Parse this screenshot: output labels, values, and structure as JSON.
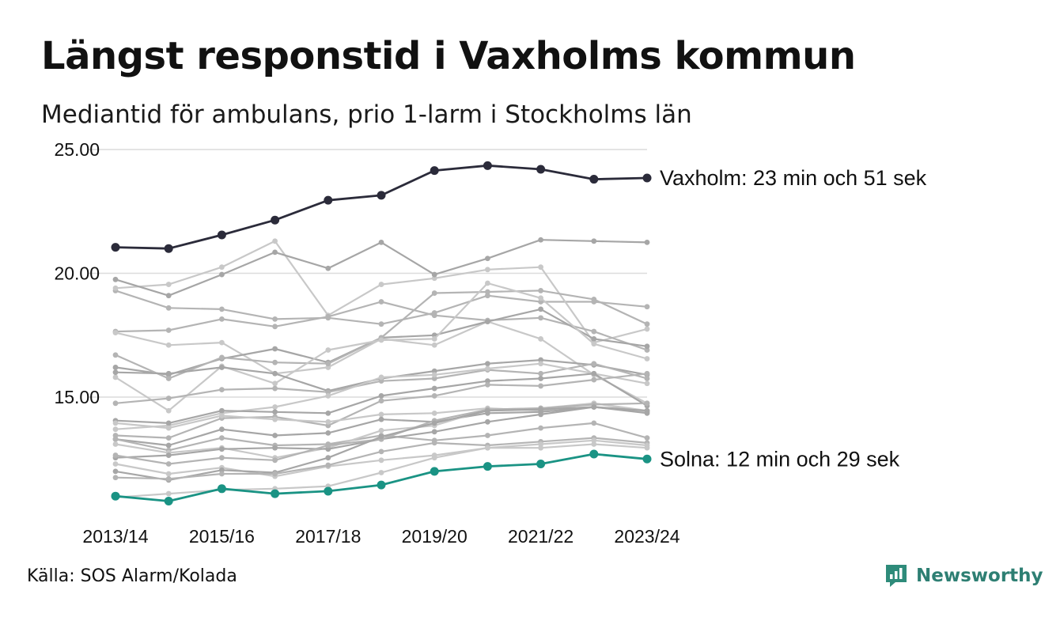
{
  "title": "Längst responstid i Vaxholms kommun",
  "subtitle": "Mediantid för ambulans, prio 1-larm i Stockholms län",
  "source": "Källa: SOS Alarm/Kolada",
  "brand": {
    "name": "Newsworthy",
    "icon": "newsworthy-logo-icon",
    "color": "#2e8b7a"
  },
  "colors": {
    "highlight_top": "#2b2b3a",
    "highlight_bottom": "#1a9384",
    "others": [
      "#b4b4b4",
      "#c8c8c8",
      "#a6a6a6"
    ],
    "grid": "#dcdcdc"
  },
  "chart_data": {
    "type": "line",
    "title": "Längst responstid i Vaxholms kommun",
    "subtitle": "Mediantid för ambulans, prio 1-larm i Stockholms län",
    "x": [
      "2013/14",
      "2014/15",
      "2015/16",
      "2016/17",
      "2017/18",
      "2018/19",
      "2019/20",
      "2020/21",
      "2021/22",
      "2022/23",
      "2023/24"
    ],
    "x_tick_labels": [
      "2013/14",
      "2015/16",
      "2017/18",
      "2019/20",
      "2021/22",
      "2023/24"
    ],
    "y_ticks": [
      "15.00",
      "20.00",
      "25.00"
    ],
    "ylim": [
      10.5,
      25.0
    ],
    "grid": true,
    "highlights": [
      {
        "name": "Vaxholm",
        "label": "Vaxholm: 23 min och 51 sek",
        "color": "#2b2b3a",
        "values": [
          21.05,
          21.0,
          21.55,
          22.15,
          22.95,
          23.15,
          24.15,
          24.35,
          24.2,
          23.8,
          23.85
        ]
      },
      {
        "name": "Solna",
        "label": "Solna: 12 min och 29 sek",
        "color": "#1a9384",
        "values": [
          11.0,
          10.8,
          11.3,
          11.1,
          11.2,
          11.45,
          12.0,
          12.2,
          12.3,
          12.7,
          12.5
        ]
      }
    ],
    "series": [
      {
        "values": [
          19.3,
          18.6,
          18.55,
          18.15,
          18.2,
          17.95,
          18.4,
          19.1,
          18.85,
          18.85,
          18.65
        ]
      },
      {
        "values": [
          19.4,
          19.55,
          20.25,
          21.3,
          18.3,
          19.55,
          19.8,
          20.15,
          20.25,
          17.2,
          17.75
        ]
      },
      {
        "values": [
          19.75,
          19.1,
          19.95,
          20.85,
          20.2,
          21.25,
          19.95,
          20.6,
          21.35,
          21.3,
          21.25
        ]
      },
      {
        "values": [
          17.65,
          17.7,
          18.15,
          17.85,
          18.25,
          18.85,
          18.3,
          18.1,
          18.2,
          17.65,
          16.9
        ]
      },
      {
        "values": [
          17.6,
          17.1,
          17.2,
          15.95,
          16.2,
          17.35,
          17.1,
          18.05,
          17.35,
          15.9,
          14.75
        ]
      },
      {
        "values": [
          16.2,
          15.9,
          16.55,
          16.95,
          16.4,
          17.4,
          17.5,
          18.05,
          18.55,
          17.35,
          17.05
        ]
      },
      {
        "values": [
          16.7,
          15.75,
          16.6,
          16.4,
          16.35,
          17.4,
          19.2,
          19.25,
          19.3,
          18.95,
          17.95
        ]
      },
      {
        "values": [
          15.8,
          14.45,
          16.25,
          15.55,
          16.9,
          17.3,
          17.35,
          19.6,
          19.0,
          17.15,
          16.55
        ]
      },
      {
        "values": [
          16.0,
          15.95,
          16.2,
          15.95,
          15.25,
          15.75,
          16.05,
          16.35,
          16.5,
          16.3,
          15.9
        ]
      },
      {
        "values": [
          14.75,
          14.95,
          15.3,
          15.35,
          15.2,
          15.65,
          15.75,
          16.1,
          15.95,
          16.35,
          15.75
        ]
      },
      {
        "values": [
          13.7,
          13.85,
          14.35,
          14.6,
          15.05,
          15.8,
          15.9,
          16.15,
          16.35,
          15.95,
          15.55
        ]
      },
      {
        "values": [
          14.05,
          13.95,
          14.45,
          14.4,
          14.35,
          15.05,
          15.35,
          15.65,
          15.75,
          15.95,
          14.65
        ]
      },
      {
        "values": [
          13.45,
          13.35,
          14.15,
          14.2,
          13.85,
          14.85,
          15.05,
          15.5,
          15.45,
          15.7,
          15.95
        ]
      },
      {
        "values": [
          13.95,
          13.75,
          14.25,
          14.1,
          14.0,
          14.3,
          14.35,
          14.55,
          14.45,
          14.75,
          14.45
        ]
      },
      {
        "values": [
          13.3,
          13.05,
          13.7,
          13.45,
          13.55,
          14.1,
          14.0,
          14.35,
          14.4,
          14.6,
          14.4
        ]
      },
      {
        "values": [
          13.3,
          12.85,
          13.35,
          13.05,
          13.1,
          13.45,
          13.25,
          13.45,
          13.75,
          13.95,
          13.35
        ]
      },
      {
        "values": [
          13.1,
          12.75,
          12.95,
          12.55,
          12.95,
          13.65,
          13.85,
          14.5,
          14.55,
          14.75,
          14.4
        ]
      },
      {
        "values": [
          12.55,
          12.65,
          12.9,
          12.95,
          12.9,
          13.3,
          13.6,
          14.0,
          14.3,
          14.6,
          14.45
        ]
      },
      {
        "values": [
          12.65,
          12.3,
          12.55,
          12.45,
          13.05,
          13.3,
          14.05,
          14.5,
          14.55,
          14.7,
          14.75
        ]
      },
      {
        "values": [
          12.3,
          11.9,
          12.15,
          11.8,
          12.2,
          12.45,
          12.65,
          12.95,
          12.95,
          13.1,
          12.95
        ]
      },
      {
        "values": [
          12.0,
          11.65,
          12.05,
          11.95,
          12.55,
          13.4,
          13.95,
          14.45,
          14.5,
          14.6,
          14.35
        ]
      },
      {
        "values": [
          11.75,
          11.7,
          11.9,
          11.9,
          12.25,
          12.8,
          13.15,
          13.05,
          13.2,
          13.35,
          13.15
        ]
      },
      {
        "values": [
          10.95,
          11.1,
          11.25,
          11.3,
          11.4,
          11.95,
          12.55,
          12.95,
          13.1,
          13.25,
          13.05
        ]
      }
    ]
  }
}
